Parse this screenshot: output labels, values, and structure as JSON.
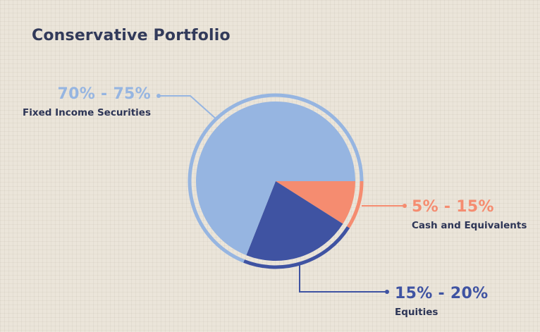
{
  "chart_data": {
    "type": "pie",
    "title": "Conservative Portfolio",
    "slices": [
      {
        "name": "Fixed Income Securities",
        "range_label": "70% - 75%",
        "value": 0.69,
        "color": "#96b5e1"
      },
      {
        "name": "Cash and Equivalents",
        "range_label": "5% - 15%",
        "value": 0.09,
        "color": "#f58c70"
      },
      {
        "name": "Equities",
        "range_label": "15% - 20%",
        "value": 0.22,
        "color": "#3f53a2"
      }
    ]
  }
}
